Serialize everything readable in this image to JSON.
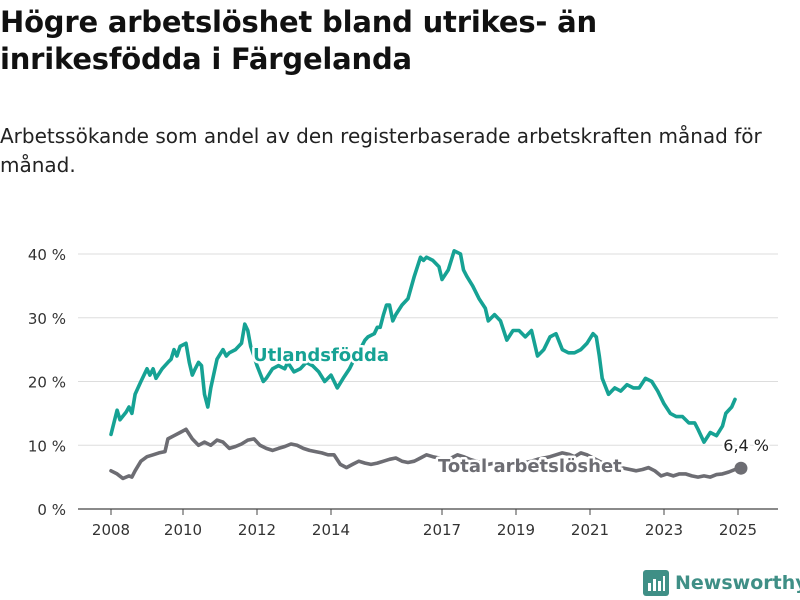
{
  "title": "Högre arbetslöshet bland utrikes- än inrikesfödda i Färgelanda",
  "subtitle": "Arbetssökande som andel av den registerbaserade arbetskraften månad för månad.",
  "brand": {
    "name": "Newsworthy"
  },
  "colors": {
    "foreign": "#16a294",
    "total": "#6d6d73",
    "grid": "#dddddd",
    "brand": "#3f8f86"
  },
  "chart_data": {
    "type": "line",
    "title": "Högre arbetslöshet bland utrikes- än inrikesfödda i Färgelanda",
    "subtitle": "Arbetssökande som andel av den registerbaserade arbetskraften månad för månad.",
    "xlabel": "",
    "ylabel": "",
    "ylim": [
      0,
      40
    ],
    "y_ticks": [
      0,
      10,
      20,
      30,
      40
    ],
    "y_tick_labels": [
      "0 %",
      "10 %",
      "20 %",
      "30 %",
      "40 %"
    ],
    "x_ticks": [
      2008,
      2010,
      2012,
      2014,
      2017,
      2019,
      2021,
      2023,
      2025
    ],
    "x_tick_labels": [
      "2008",
      "2010",
      "2012",
      "2014",
      "2017",
      "2019",
      "2021",
      "2023",
      "2025"
    ],
    "grid": true,
    "legend": "inline labels",
    "end_label": "6,4 %",
    "series": [
      {
        "name": "Utlandsfödda",
        "color": "#16a294",
        "points": [
          [
            2008.0,
            11.7
          ],
          [
            2008.17,
            15.5
          ],
          [
            2008.25,
            14.0
          ],
          [
            2008.42,
            15.2
          ],
          [
            2008.5,
            16.0
          ],
          [
            2008.58,
            15.0
          ],
          [
            2008.67,
            18.0
          ],
          [
            2008.83,
            20.0
          ],
          [
            2009.0,
            22.0
          ],
          [
            2009.08,
            21.0
          ],
          [
            2009.17,
            22.0
          ],
          [
            2009.25,
            20.5
          ],
          [
            2009.42,
            22.0
          ],
          [
            2009.58,
            23.0
          ],
          [
            2009.67,
            23.5
          ],
          [
            2009.75,
            25.0
          ],
          [
            2009.83,
            24.0
          ],
          [
            2009.92,
            25.5
          ],
          [
            2010.08,
            26.0
          ],
          [
            2010.17,
            23.0
          ],
          [
            2010.25,
            21.0
          ],
          [
            2010.33,
            22.0
          ],
          [
            2010.42,
            23.0
          ],
          [
            2010.5,
            22.5
          ],
          [
            2010.58,
            18.0
          ],
          [
            2010.67,
            16.0
          ],
          [
            2010.75,
            19.0
          ],
          [
            2010.92,
            23.5
          ],
          [
            2011.08,
            25.0
          ],
          [
            2011.17,
            24.0
          ],
          [
            2011.25,
            24.5
          ],
          [
            2011.42,
            25.0
          ],
          [
            2011.58,
            26.0
          ],
          [
            2011.67,
            29.0
          ],
          [
            2011.75,
            28.0
          ],
          [
            2011.83,
            25.5
          ],
          [
            2011.92,
            24.0
          ],
          [
            2012.0,
            22.5
          ],
          [
            2012.17,
            20.0
          ],
          [
            2012.25,
            20.5
          ],
          [
            2012.42,
            22.0
          ],
          [
            2012.58,
            22.5
          ],
          [
            2012.75,
            22.0
          ],
          [
            2012.83,
            23.0
          ],
          [
            2013.0,
            21.5
          ],
          [
            2013.17,
            22.0
          ],
          [
            2013.33,
            23.0
          ],
          [
            2013.5,
            22.5
          ],
          [
            2013.67,
            21.5
          ],
          [
            2013.83,
            20.0
          ],
          [
            2014.0,
            21.0
          ],
          [
            2014.17,
            19.0
          ],
          [
            2014.33,
            20.5
          ],
          [
            2014.5,
            22.0
          ],
          [
            2014.67,
            24.0
          ],
          [
            2014.83,
            25.5
          ],
          [
            2014.92,
            26.5
          ],
          [
            2015.0,
            27.0
          ],
          [
            2015.17,
            27.5
          ],
          [
            2015.25,
            28.5
          ],
          [
            2015.33,
            28.5
          ],
          [
            2015.42,
            30.5
          ],
          [
            2015.5,
            32.0
          ],
          [
            2015.58,
            32.0
          ],
          [
            2015.67,
            29.5
          ],
          [
            2015.75,
            30.5
          ],
          [
            2015.92,
            32.0
          ],
          [
            2016.08,
            33.0
          ],
          [
            2016.25,
            36.5
          ],
          [
            2016.42,
            39.5
          ],
          [
            2016.5,
            39.0
          ],
          [
            2016.58,
            39.5
          ],
          [
            2016.75,
            39.0
          ],
          [
            2016.92,
            38.0
          ],
          [
            2017.0,
            36.0
          ],
          [
            2017.17,
            37.5
          ],
          [
            2017.33,
            40.5
          ],
          [
            2017.5,
            40.0
          ],
          [
            2017.58,
            37.5
          ],
          [
            2017.67,
            36.5
          ],
          [
            2017.83,
            35.0
          ],
          [
            2018.0,
            33.0
          ],
          [
            2018.17,
            31.5
          ],
          [
            2018.25,
            29.5
          ],
          [
            2018.42,
            30.5
          ],
          [
            2018.58,
            29.5
          ],
          [
            2018.75,
            26.5
          ],
          [
            2018.92,
            28.0
          ],
          [
            2019.08,
            28.0
          ],
          [
            2019.25,
            27.0
          ],
          [
            2019.42,
            28.0
          ],
          [
            2019.58,
            24.0
          ],
          [
            2019.75,
            25.0
          ],
          [
            2019.92,
            27.0
          ],
          [
            2020.08,
            27.5
          ],
          [
            2020.25,
            25.0
          ],
          [
            2020.42,
            24.5
          ],
          [
            2020.58,
            24.5
          ],
          [
            2020.75,
            25.0
          ],
          [
            2020.92,
            26.0
          ],
          [
            2021.08,
            27.5
          ],
          [
            2021.17,
            27.0
          ],
          [
            2021.25,
            24.0
          ],
          [
            2021.33,
            20.5
          ],
          [
            2021.5,
            18.0
          ],
          [
            2021.67,
            19.0
          ],
          [
            2021.83,
            18.5
          ],
          [
            2022.0,
            19.5
          ],
          [
            2022.17,
            19.0
          ],
          [
            2022.33,
            19.0
          ],
          [
            2022.5,
            20.5
          ],
          [
            2022.67,
            20.0
          ],
          [
            2022.83,
            18.5
          ],
          [
            2023.0,
            16.5
          ],
          [
            2023.17,
            15.0
          ],
          [
            2023.33,
            14.5
          ],
          [
            2023.5,
            14.5
          ],
          [
            2023.67,
            13.5
          ],
          [
            2023.83,
            13.5
          ],
          [
            2023.92,
            12.5
          ],
          [
            2024.08,
            10.5
          ],
          [
            2024.25,
            12.0
          ],
          [
            2024.42,
            11.5
          ],
          [
            2024.58,
            13.0
          ],
          [
            2024.67,
            15.0
          ],
          [
            2024.83,
            16.0
          ],
          [
            2024.92,
            17.2
          ]
        ]
      },
      {
        "name": "Total arbetslöshet",
        "color": "#6d6d73",
        "points": [
          [
            2008.0,
            6.0
          ],
          [
            2008.17,
            5.5
          ],
          [
            2008.33,
            4.8
          ],
          [
            2008.5,
            5.2
          ],
          [
            2008.58,
            5.0
          ],
          [
            2008.67,
            6.0
          ],
          [
            2008.83,
            7.5
          ],
          [
            2009.0,
            8.2
          ],
          [
            2009.17,
            8.5
          ],
          [
            2009.33,
            8.8
          ],
          [
            2009.5,
            9.0
          ],
          [
            2009.58,
            11.0
          ],
          [
            2009.75,
            11.5
          ],
          [
            2009.92,
            12.0
          ],
          [
            2010.08,
            12.5
          ],
          [
            2010.25,
            11.0
          ],
          [
            2010.42,
            10.0
          ],
          [
            2010.58,
            10.5
          ],
          [
            2010.75,
            10.0
          ],
          [
            2010.92,
            10.8
          ],
          [
            2011.08,
            10.5
          ],
          [
            2011.25,
            9.5
          ],
          [
            2011.42,
            9.8
          ],
          [
            2011.58,
            10.2
          ],
          [
            2011.75,
            10.8
          ],
          [
            2011.92,
            11.0
          ],
          [
            2012.08,
            10.0
          ],
          [
            2012.25,
            9.5
          ],
          [
            2012.42,
            9.2
          ],
          [
            2012.58,
            9.5
          ],
          [
            2012.75,
            9.8
          ],
          [
            2012.92,
            10.2
          ],
          [
            2013.08,
            10.0
          ],
          [
            2013.25,
            9.5
          ],
          [
            2013.42,
            9.2
          ],
          [
            2013.58,
            9.0
          ],
          [
            2013.75,
            8.8
          ],
          [
            2013.92,
            8.5
          ],
          [
            2014.08,
            8.5
          ],
          [
            2014.25,
            7.0
          ],
          [
            2014.42,
            6.5
          ],
          [
            2014.58,
            7.0
          ],
          [
            2014.75,
            7.5
          ],
          [
            2014.92,
            7.2
          ],
          [
            2015.08,
            7.0
          ],
          [
            2015.25,
            7.2
          ],
          [
            2015.42,
            7.5
          ],
          [
            2015.58,
            7.8
          ],
          [
            2015.75,
            8.0
          ],
          [
            2015.92,
            7.5
          ],
          [
            2016.08,
            7.3
          ],
          [
            2016.25,
            7.5
          ],
          [
            2016.42,
            8.0
          ],
          [
            2016.58,
            8.5
          ],
          [
            2016.75,
            8.2
          ],
          [
            2016.92,
            8.0
          ],
          [
            2017.08,
            7.8
          ],
          [
            2017.25,
            8.0
          ],
          [
            2017.42,
            8.5
          ],
          [
            2017.58,
            8.2
          ],
          [
            2017.75,
            7.8
          ],
          [
            2017.92,
            7.5
          ],
          [
            2018.08,
            7.2
          ],
          [
            2018.25,
            7.0
          ],
          [
            2018.42,
            7.2
          ],
          [
            2018.58,
            7.4
          ],
          [
            2018.75,
            7.2
          ],
          [
            2018.92,
            7.0
          ],
          [
            2019.08,
            7.0
          ],
          [
            2019.25,
            7.3
          ],
          [
            2019.42,
            7.5
          ],
          [
            2019.58,
            7.8
          ],
          [
            2019.75,
            8.0
          ],
          [
            2019.92,
            8.2
          ],
          [
            2020.08,
            8.5
          ],
          [
            2020.25,
            8.8
          ],
          [
            2020.42,
            8.6
          ],
          [
            2020.58,
            8.2
          ],
          [
            2020.75,
            8.8
          ],
          [
            2020.92,
            8.5
          ],
          [
            2021.08,
            8.0
          ],
          [
            2021.25,
            7.5
          ],
          [
            2021.42,
            7.0
          ],
          [
            2021.58,
            6.8
          ],
          [
            2021.75,
            6.5
          ],
          [
            2021.92,
            6.4
          ],
          [
            2022.08,
            6.2
          ],
          [
            2022.25,
            6.0
          ],
          [
            2022.42,
            6.2
          ],
          [
            2022.58,
            6.5
          ],
          [
            2022.75,
            6.0
          ],
          [
            2022.92,
            5.2
          ],
          [
            2023.08,
            5.5
          ],
          [
            2023.25,
            5.2
          ],
          [
            2023.42,
            5.5
          ],
          [
            2023.58,
            5.5
          ],
          [
            2023.75,
            5.2
          ],
          [
            2023.92,
            5.0
          ],
          [
            2024.08,
            5.2
          ],
          [
            2024.25,
            5.0
          ],
          [
            2024.42,
            5.4
          ],
          [
            2024.58,
            5.5
          ],
          [
            2024.75,
            5.8
          ],
          [
            2024.92,
            6.2
          ],
          [
            2025.08,
            6.4
          ]
        ]
      }
    ]
  }
}
